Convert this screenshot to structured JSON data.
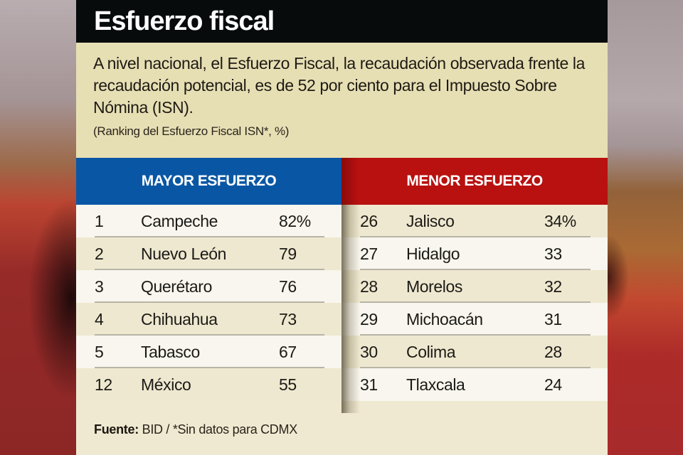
{
  "title": "Esfuerzo fiscal",
  "intro": "A nivel nacional, el Esfuerzo Fiscal, la recaudación observada frente la recaudación potencial, es de 52 por ciento para el Impuesto Sobre Nómina (ISN).",
  "subtitle": "(Ranking del Esfuerzo Fiscal ISN*, %)",
  "colors": {
    "title_bar": "#070b0c",
    "intro_bg": "#e7dfb4",
    "mayor_header": "#0957a4",
    "menor_header": "#b8110f",
    "panel_bg": "#f0e9d1"
  },
  "mayor": {
    "header": "MAYOR ESFUERZO",
    "rows": [
      {
        "rank": "1",
        "state": "Campeche",
        "value": "82%"
      },
      {
        "rank": "2",
        "state": "Nuevo León",
        "value": "79"
      },
      {
        "rank": "3",
        "state": "Querétaro",
        "value": "76"
      },
      {
        "rank": "4",
        "state": "Chihuahua",
        "value": "73"
      },
      {
        "rank": "5",
        "state": "Tabasco",
        "value": "67"
      },
      {
        "rank": "12",
        "state": "México",
        "value": "55"
      }
    ]
  },
  "menor": {
    "header": "MENOR ESFUERZO",
    "rows": [
      {
        "rank": "26",
        "state": "Jalisco",
        "value": "34%"
      },
      {
        "rank": "27",
        "state": "Hidalgo",
        "value": "33"
      },
      {
        "rank": "28",
        "state": "Morelos",
        "value": "32"
      },
      {
        "rank": "29",
        "state": "Michoacán",
        "value": "31"
      },
      {
        "rank": "30",
        "state": "Colima",
        "value": "28"
      },
      {
        "rank": "31",
        "state": "Tlaxcala",
        "value": "24"
      }
    ]
  },
  "source": {
    "label": "Fuente:",
    "text": " BID / *Sin datos para CDMX"
  }
}
